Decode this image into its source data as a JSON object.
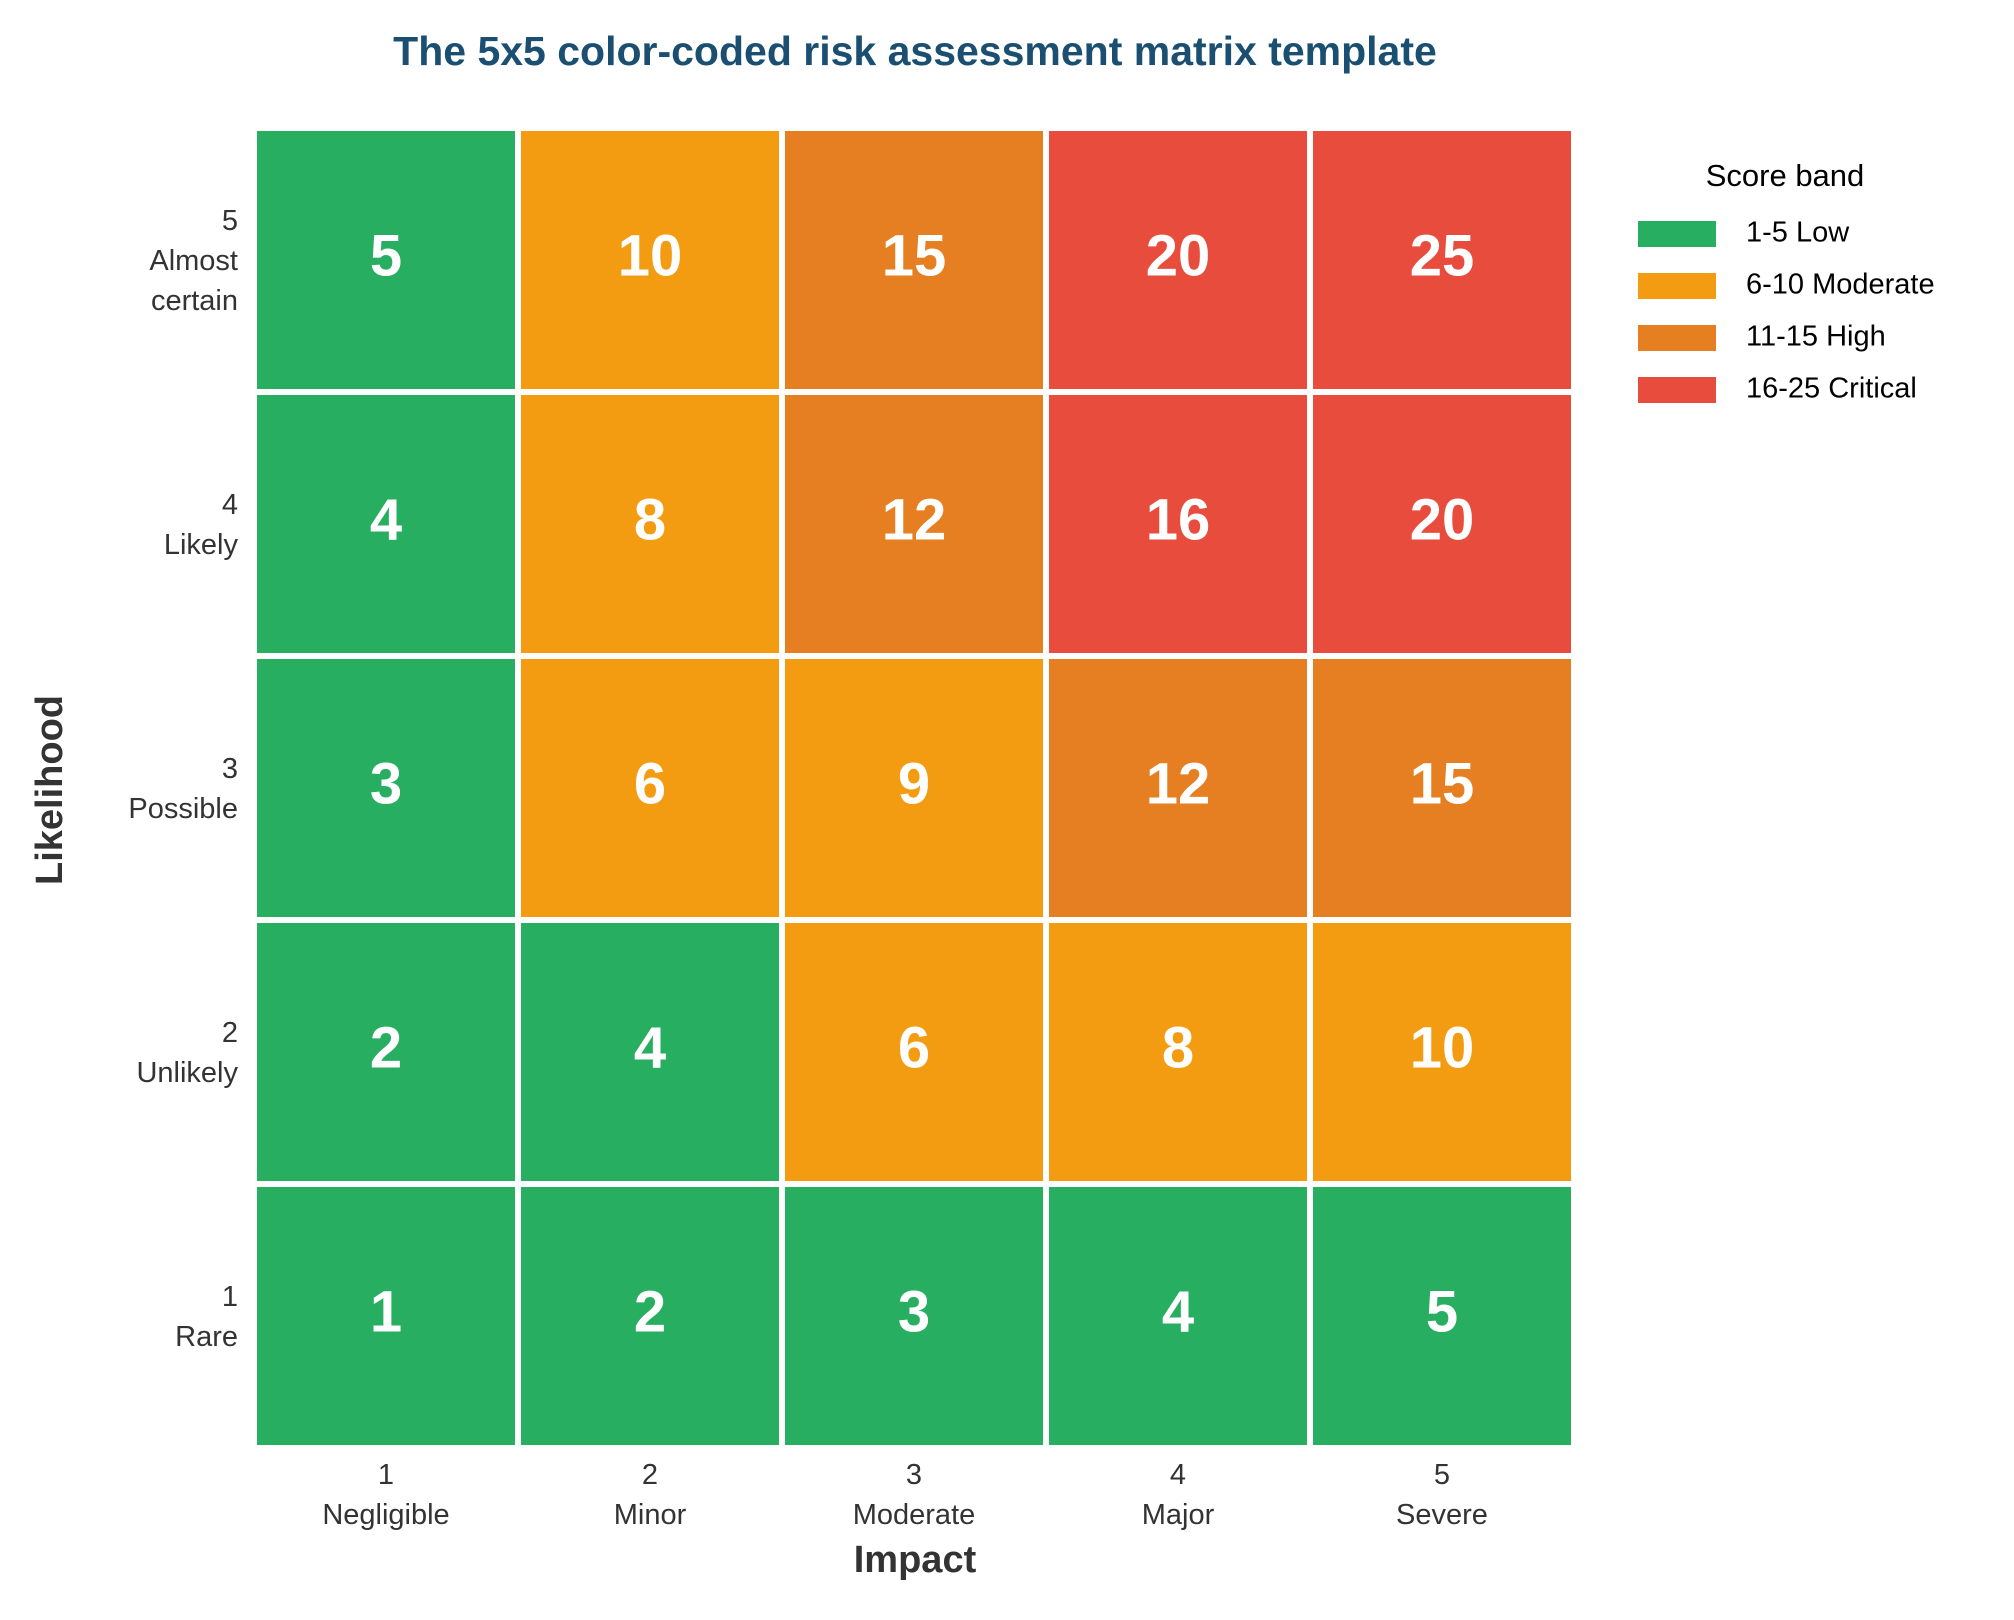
{
  "chart_data": {
    "type": "heatmap",
    "title": "The 5x5 color-coded risk assessment matrix template",
    "x_label": "Impact",
    "y_label": "Likelihood",
    "x_categories": [
      [
        "1",
        "Negligible"
      ],
      [
        "2",
        "Minor"
      ],
      [
        "3",
        "Moderate"
      ],
      [
        "4",
        "Major"
      ],
      [
        "5",
        "Severe"
      ]
    ],
    "y_categories": [
      [
        "1",
        "Rare"
      ],
      [
        "2",
        "Unlikely"
      ],
      [
        "3",
        "Possible"
      ],
      [
        "4",
        "Likely"
      ],
      [
        "5",
        "Almost",
        "certain"
      ]
    ],
    "values": [
      [
        1,
        2,
        3,
        4,
        5
      ],
      [
        2,
        4,
        6,
        8,
        10
      ],
      [
        3,
        6,
        9,
        12,
        15
      ],
      [
        4,
        8,
        12,
        16,
        20
      ],
      [
        5,
        10,
        15,
        20,
        25
      ]
    ],
    "cell_colors": [
      [
        "#27ae60",
        "#27ae60",
        "#27ae60",
        "#27ae60",
        "#27ae60"
      ],
      [
        "#27ae60",
        "#27ae60",
        "#f39c12",
        "#f39c12",
        "#f39c12"
      ],
      [
        "#27ae60",
        "#f39c12",
        "#f39c12",
        "#e67e22",
        "#e67e22"
      ],
      [
        "#27ae60",
        "#f39c12",
        "#e67e22",
        "#e74c3c",
        "#e74c3c"
      ],
      [
        "#27ae60",
        "#f39c12",
        "#e67e22",
        "#e74c3c",
        "#e74c3c"
      ]
    ],
    "legend_title": "Score band",
    "legend": [
      {
        "name": "1-5 Low",
        "color": "#27ae60"
      },
      {
        "name": "6-10 Moderate",
        "color": "#f39c12"
      },
      {
        "name": "11-15 High",
        "color": "#e67e22"
      },
      {
        "name": "16-25 Critical",
        "color": "#e74c3c"
      }
    ],
    "legend_position": "upper right"
  }
}
